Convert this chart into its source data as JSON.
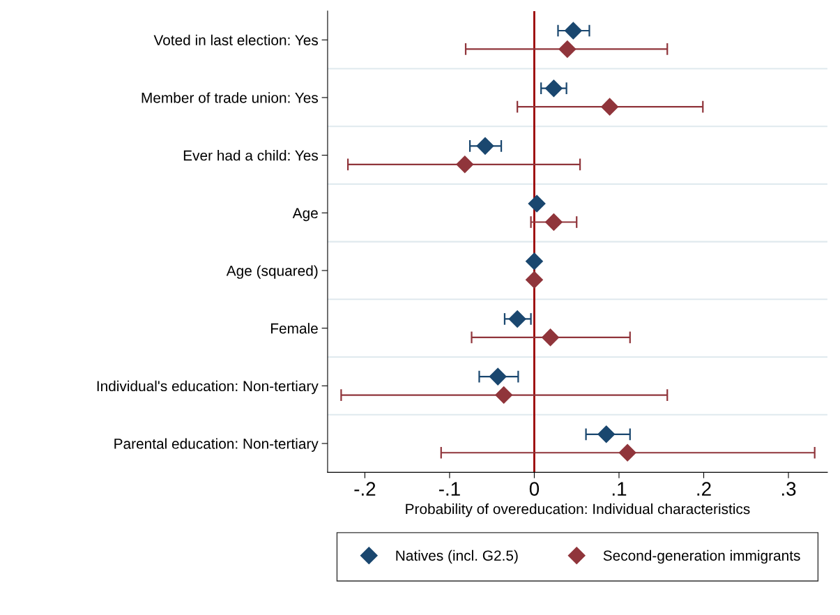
{
  "chart_data": {
    "type": "scatter",
    "orientation": "horizontal",
    "xlabel": "Probability of overeducation: Individual characteristics",
    "categories": [
      "Voted in last election: Yes",
      "Member of trade union: Yes",
      "Ever had a child: Yes",
      "Age",
      "Age (squared)",
      "Female",
      "Individual's education: Non-tertiary",
      "Parental education: Non-tertiary"
    ],
    "series": [
      {
        "name": "Natives (incl. G2.5)",
        "color": "#1a476f",
        "values": [
          0.046,
          0.023,
          -0.058,
          0.003,
          0,
          -0.02,
          -0.043,
          0.085
        ],
        "errors": [
          [
            0.028,
            0.065
          ],
          [
            0.008,
            0.038
          ],
          [
            -0.076,
            -0.039
          ],
          null,
          null,
          [
            -0.035,
            -0.004
          ],
          [
            -0.065,
            -0.019
          ],
          [
            0.061,
            0.113
          ]
        ]
      },
      {
        "name": "Second-generation immigrants",
        "color": "#90353b",
        "values": [
          0.039,
          0.089,
          -0.082,
          0.023,
          0,
          0.019,
          -0.036,
          0.11
        ],
        "errors": [
          [
            -0.081,
            0.157
          ],
          [
            -0.02,
            0.199
          ],
          [
            -0.22,
            0.054
          ],
          [
            -0.004,
            0.05
          ],
          null,
          [
            -0.074,
            0.113
          ],
          [
            -0.228,
            0.157
          ],
          [
            -0.11,
            0.331
          ]
        ]
      }
    ],
    "xlim": [
      -0.244,
      0.346
    ],
    "xticks": [
      {
        "value": -0.2,
        "label": "-.2"
      },
      {
        "value": -0.1,
        "label": "-.1"
      },
      0,
      {
        "value": 0.1,
        "label": ".1"
      },
      {
        "value": 0.2,
        "label": ".2"
      },
      {
        "value": 0.3,
        "label": ".3"
      }
    ],
    "ref_lines": [
      {
        "axis": "x",
        "value": 0,
        "color": "#990000",
        "line_style": "solid"
      }
    ],
    "grid": "y",
    "legend": "bottom",
    "marker": "diamond",
    "line_style": "none"
  }
}
